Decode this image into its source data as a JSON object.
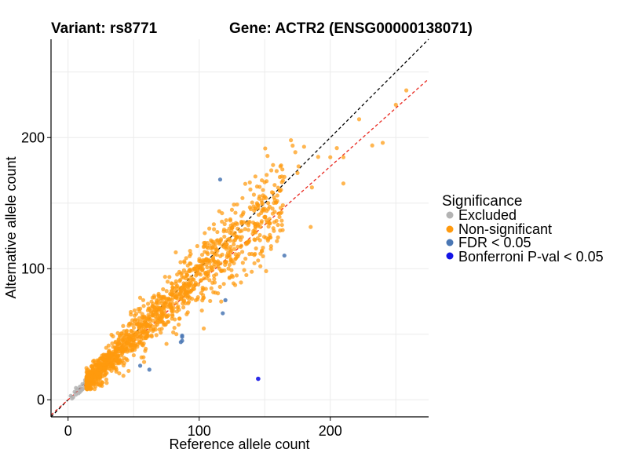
{
  "chart_data": {
    "type": "scatter",
    "title_left": "Variant: rs8771",
    "title_right": "Gene: ACTR2 (ENSG00000138071)",
    "xlabel": "Reference allele count",
    "ylabel": "Alternative allele count",
    "xlim": [
      -13,
      275
    ],
    "ylim": [
      -13,
      275
    ],
    "xticks": [
      0,
      100,
      200
    ],
    "yticks": [
      0,
      100,
      200
    ],
    "grid": true,
    "reference_lines": [
      {
        "name": "identity",
        "slope": 1.0,
        "intercept": 0,
        "color": "#000000",
        "style": "dashed"
      },
      {
        "name": "fit",
        "slope": 0.89,
        "intercept": 0,
        "color": "#e8231a",
        "style": "dashed"
      }
    ],
    "legend": {
      "title": "Significance",
      "position": "right",
      "entries": [
        {
          "label": "Excluded",
          "color": "#b3b3b3"
        },
        {
          "label": "Non-significant",
          "color": "#ff9a0e"
        },
        {
          "label": "FDR < 0.05",
          "color": "#4a77b4"
        },
        {
          "label": "Bonferroni P-val < 0.05",
          "color": "#1414e6"
        }
      ]
    },
    "series": [
      {
        "name": "Excluded",
        "color": "#b3b3b3",
        "generated": true,
        "points": [
          [
            2,
            3
          ],
          [
            4,
            2
          ],
          [
            5,
            6
          ],
          [
            6,
            4
          ],
          [
            7,
            8
          ],
          [
            8,
            5
          ],
          [
            9,
            10
          ],
          [
            10,
            7
          ],
          [
            11,
            12
          ],
          [
            12,
            9
          ],
          [
            13,
            13
          ],
          [
            14,
            11
          ],
          [
            15,
            16
          ],
          [
            3,
            1
          ],
          [
            6,
            9
          ],
          [
            9,
            6
          ],
          [
            11,
            8
          ],
          [
            13,
            15
          ],
          [
            16,
            14
          ]
        ]
      },
      {
        "name": "Non-significant",
        "color": "#ff9a0e",
        "count": 1400,
        "points": [
          [
            170,
            198
          ],
          [
            180,
            193
          ],
          [
            240,
            196
          ],
          [
            258,
            236
          ],
          [
            250,
            225
          ],
          [
            222,
            214
          ],
          [
            232,
            194
          ],
          [
            205,
            192
          ],
          [
            210,
            165
          ],
          [
            210,
            185
          ],
          [
            200,
            185
          ],
          [
            186,
            162
          ],
          [
            175,
            173
          ],
          [
            150,
            155
          ],
          [
            155,
            175
          ],
          [
            165,
            170
          ],
          [
            145,
            146
          ]
        ]
      },
      {
        "name": "FDR < 0.05",
        "color": "#4a77b4",
        "points": [
          [
            116,
            168
          ],
          [
            120,
            76
          ],
          [
            118,
            66
          ],
          [
            165,
            110
          ],
          [
            87,
            48
          ],
          [
            87,
            45
          ],
          [
            86,
            44
          ],
          [
            87,
            49
          ],
          [
            62,
            23
          ],
          [
            55,
            26
          ]
        ]
      },
      {
        "name": "Bonferroni P-val < 0.05",
        "color": "#1414e6",
        "points": [
          [
            145,
            16
          ]
        ]
      }
    ]
  }
}
